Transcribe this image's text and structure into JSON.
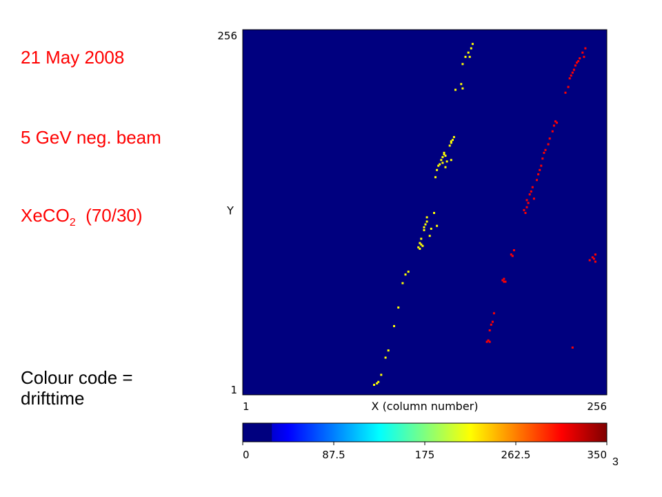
{
  "info": {
    "date": "21 May 2008",
    "beam": "5 GeV neg. beam",
    "gas_prefix": "XeCO",
    "gas_subscript": "2",
    "gas_ratio": "(70/30)",
    "colour_code_line1": "Colour code =",
    "colour_code_line2": "drifttime"
  },
  "slide_number": "3",
  "chart_data": {
    "type": "scatter",
    "xlabel": "X (column number)",
    "ylabel": "Y",
    "x_tick_labels": [
      "1",
      "256"
    ],
    "y_tick_labels": [
      "1",
      "256"
    ],
    "xlim": [
      1,
      256
    ],
    "ylim": [
      1,
      256
    ],
    "background_color": "#00007f",
    "grid": false,
    "colorbar": {
      "range": [
        0,
        350
      ],
      "tick_labels": [
        "0",
        "87.5",
        "175",
        "262.5",
        "350"
      ],
      "tick_values": [
        0,
        87.5,
        175,
        262.5,
        350
      ],
      "colormap": "jet",
      "lower_segment_color": "#00007f",
      "lower_segment_max": 28
    },
    "series": [
      {
        "drifttime": 260,
        "color": "#ffff00",
        "points": [
          [
            93,
            8
          ],
          [
            95,
            9
          ],
          [
            96,
            10
          ],
          [
            98,
            15
          ],
          [
            101,
            27
          ],
          [
            103,
            32
          ],
          [
            107,
            49
          ],
          [
            110,
            62
          ],
          [
            113,
            79
          ],
          [
            115,
            85
          ],
          [
            117,
            87
          ],
          [
            124,
            104
          ],
          [
            125,
            107
          ],
          [
            126,
            106
          ],
          [
            125,
            103
          ],
          [
            127,
            105
          ],
          [
            126,
            110
          ],
          [
            128,
            116
          ],
          [
            129,
            120
          ],
          [
            128,
            118
          ],
          [
            130,
            122
          ],
          [
            130,
            125
          ],
          [
            136,
            153
          ],
          [
            137,
            158
          ],
          [
            138,
            161
          ],
          [
            140,
            165
          ],
          [
            141,
            167
          ],
          [
            142,
            169
          ],
          [
            141,
            163
          ],
          [
            143,
            168
          ],
          [
            144,
            164
          ],
          [
            142,
            170
          ],
          [
            139,
            162
          ],
          [
            147,
            165
          ],
          [
            143,
            160
          ],
          [
            146,
            175
          ],
          [
            147,
            177
          ],
          [
            148,
            179
          ],
          [
            149,
            181
          ],
          [
            147,
            178
          ],
          [
            137,
            119
          ],
          [
            133,
            117
          ],
          [
            135,
            128
          ],
          [
            132,
            112
          ],
          [
            150,
            214
          ],
          [
            154,
            218
          ],
          [
            155,
            215
          ],
          [
            155,
            232
          ],
          [
            157,
            237
          ],
          [
            159,
            240
          ],
          [
            160,
            237
          ],
          [
            161,
            243
          ],
          [
            162,
            246
          ]
        ]
      },
      {
        "drifttime": 315,
        "color": "#ff0000",
        "points": [
          [
            172,
            38
          ],
          [
            174,
            38
          ],
          [
            173,
            39
          ],
          [
            174,
            46
          ],
          [
            175,
            50
          ],
          [
            176,
            52
          ],
          [
            177,
            58
          ],
          [
            184,
            80
          ],
          [
            184,
            82
          ],
          [
            185,
            80
          ],
          [
            183,
            81
          ],
          [
            189,
            99
          ],
          [
            190,
            98
          ],
          [
            191,
            102
          ],
          [
            198,
            130
          ],
          [
            199,
            128
          ],
          [
            200,
            132
          ],
          [
            201,
            135
          ],
          [
            200,
            137
          ],
          [
            202,
            141
          ],
          [
            204,
            146
          ],
          [
            203,
            143
          ],
          [
            205,
            138
          ],
          [
            207,
            151
          ],
          [
            209,
            158
          ],
          [
            208,
            155
          ],
          [
            210,
            161
          ],
          [
            211,
            166
          ],
          [
            212,
            170
          ],
          [
            213,
            172
          ],
          [
            215,
            176
          ],
          [
            216,
            180
          ],
          [
            218,
            185
          ],
          [
            219,
            189
          ],
          [
            220,
            192
          ],
          [
            221,
            191
          ],
          [
            227,
            212
          ],
          [
            229,
            216
          ],
          [
            230,
            222
          ],
          [
            231,
            224
          ],
          [
            232,
            226
          ],
          [
            233,
            228
          ],
          [
            234,
            231
          ],
          [
            235,
            233
          ],
          [
            236,
            234
          ],
          [
            237,
            236
          ],
          [
            239,
            240
          ],
          [
            240,
            237
          ],
          [
            241,
            243
          ],
          [
            232,
            34
          ],
          [
            244,
            95
          ],
          [
            246,
            97
          ],
          [
            248,
            99
          ],
          [
            247,
            96
          ],
          [
            248,
            94
          ]
        ]
      }
    ]
  }
}
